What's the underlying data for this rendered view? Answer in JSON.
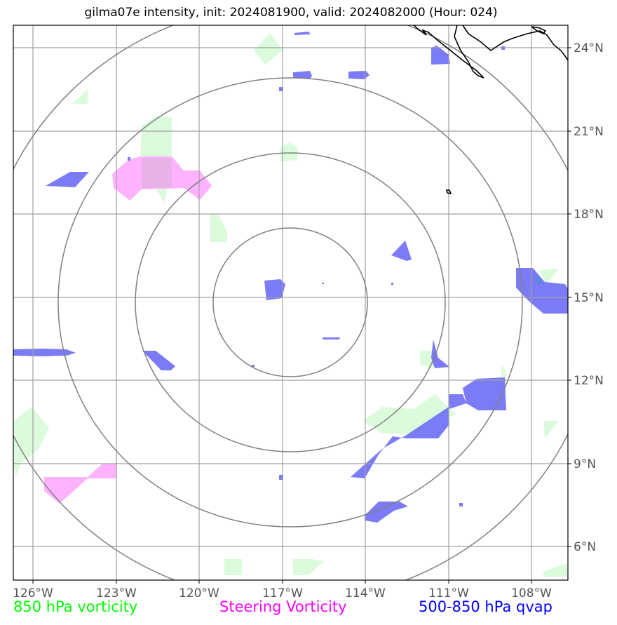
{
  "title": "gilma07e intensity, init: 2024081900, valid: 2024082000 (Hour: 024)",
  "x_ticks": [
    "126°W",
    "123°W",
    "120°W",
    "117°W",
    "114°W",
    "111°W",
    "108°W"
  ],
  "y_ticks": [
    "24°N",
    "21°N",
    "18°N",
    "15°N",
    "12°N",
    "9°N",
    "6°N"
  ],
  "legend": {
    "vort850": "850 hPa vorticity",
    "steering": "Steering Vorticity",
    "qvap": "500-850 hPa qvap"
  },
  "colors": {
    "vort850": "#00ff00",
    "vort850_fill": "#dcfbdc",
    "steering": "#ff00ff",
    "steering_fill": "#ffb3ff",
    "qvap": "#0000ff",
    "qvap_fill": "#7b7bf6",
    "grid": "#a0a0a0",
    "rings": "#808080",
    "coast": "#000000"
  },
  "map": {
    "lon_range": [
      -126.7,
      -106.6
    ],
    "lat_range": [
      4.8,
      24.8
    ],
    "center": {
      "lon": -117,
      "lat": 15
    },
    "range_rings_deg": [
      3,
      6,
      9,
      12
    ]
  }
}
